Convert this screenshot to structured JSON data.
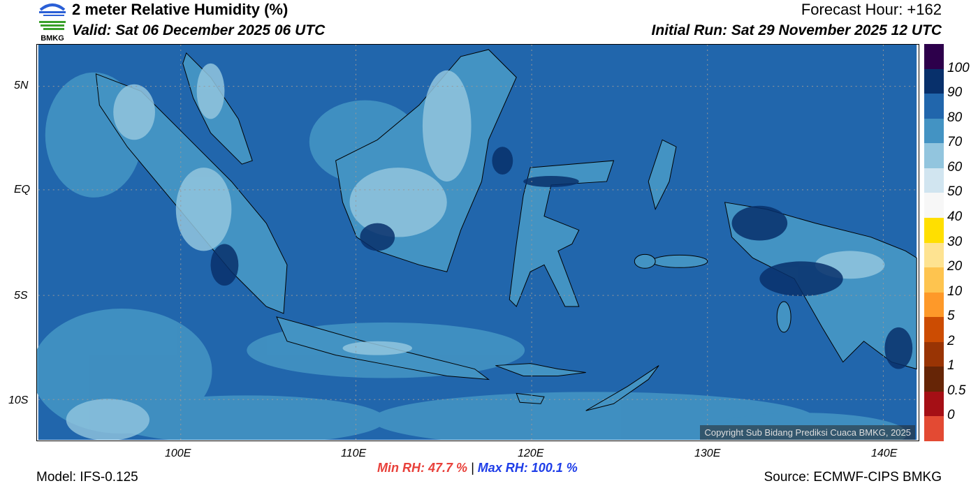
{
  "header": {
    "logo_text": "BMKG",
    "title": "2 meter Relative Humidity (%)",
    "valid": "Valid: Sat 06 December 2025 06 UTC",
    "forecast_hour": "Forecast Hour: +162",
    "initial_run": "Initial Run: Sat 29 November 2025 12 UTC"
  },
  "map": {
    "lat_ticks": [
      "5N",
      "EQ",
      "5S",
      "10S"
    ],
    "lon_ticks": [
      "100E",
      "110E",
      "120E",
      "130E",
      "140E"
    ],
    "copyright": "Copyright Sub Bidang Prediksi Cuaca BMKG, 2025",
    "ocean_color": "#2166ac"
  },
  "colorbar": {
    "colors": [
      "#2d004b",
      "#08306b",
      "#2166ac",
      "#4393c3",
      "#92c5de",
      "#d1e5f0",
      "#f7f7f7",
      "#ffdf00",
      "#fee391",
      "#fec44f",
      "#fe9929",
      "#cc4c02",
      "#993404",
      "#662506",
      "#a50f15",
      "#e34a33"
    ],
    "labels": [
      "100",
      "90",
      "80",
      "70",
      "60",
      "50",
      "40",
      "30",
      "20",
      "10",
      "5",
      "2",
      "1",
      "0.5",
      "0"
    ]
  },
  "footer": {
    "model": "Model: IFS-0.125",
    "min_rh": "Min RH:  47.7 %",
    "separator": "|",
    "max_rh": "Max RH: 100.1 %",
    "source": "Source: ECMWF-CIPS BMKG"
  }
}
